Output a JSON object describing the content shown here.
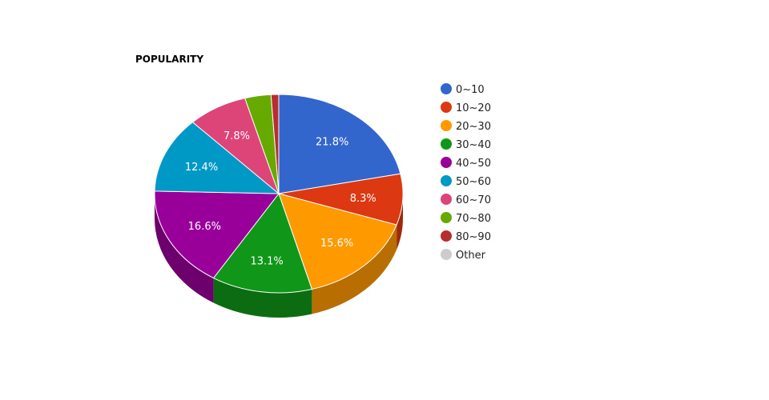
{
  "chart_data": {
    "type": "pie",
    "title": "POPULARITY",
    "legend_position": "right",
    "slices": [
      {
        "label": "0~10",
        "value": 21.8,
        "display": "21.8%",
        "color": "#3366cc"
      },
      {
        "label": "10~20",
        "value": 8.3,
        "display": "8.3%",
        "color": "#dc3912"
      },
      {
        "label": "20~30",
        "value": 15.6,
        "display": "15.6%",
        "color": "#ff9900"
      },
      {
        "label": "30~40",
        "value": 13.1,
        "display": "13.1%",
        "color": "#109618"
      },
      {
        "label": "40~50",
        "value": 16.6,
        "display": "16.6%",
        "color": "#990099"
      },
      {
        "label": "50~60",
        "value": 12.4,
        "display": "12.4%",
        "color": "#0099c6"
      },
      {
        "label": "60~70",
        "value": 7.8,
        "display": "7.8%",
        "color": "#dd4477"
      },
      {
        "label": "70~80",
        "value": 3.4,
        "display": "",
        "color": "#66aa00"
      },
      {
        "label": "80~90",
        "value": 1.0,
        "display": "",
        "color": "#b82e2e"
      },
      {
        "label": "Other",
        "value": 0.0,
        "display": "",
        "color": "#cccccc"
      }
    ]
  }
}
